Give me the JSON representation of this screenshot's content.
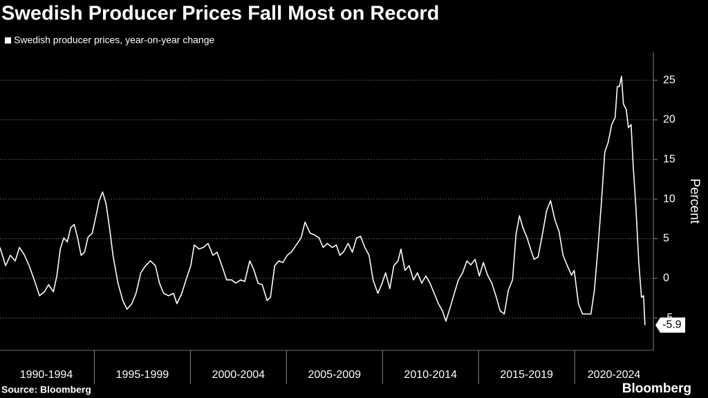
{
  "chart_data": {
    "type": "line",
    "title": "Swedish Producer Prices Fall Most on Record",
    "y_label": "Percent",
    "source": "Source: Bloomberg",
    "brand": "Bloomberg",
    "x": [
      1990.09,
      1990.38,
      1990.63,
      1990.88,
      1991.1,
      1991.35,
      1991.61,
      1991.9,
      1992.15,
      1992.4,
      1992.62,
      1992.87,
      1993.05,
      1993.23,
      1993.41,
      1993.59,
      1993.77,
      1993.95,
      1994.13,
      1994.31,
      1994.49,
      1994.67,
      1994.89,
      1995.07,
      1995.25,
      1995.43,
      1995.61,
      1995.79,
      1995.97,
      1996.23,
      1996.48,
      1996.7,
      1996.95,
      1997.17,
      1997.42,
      1997.67,
      1997.92,
      1998.18,
      1998.39,
      1998.61,
      1998.86,
      1999.12,
      1999.3,
      1999.55,
      1999.77,
      2000.02,
      2000.2,
      2000.45,
      2000.67,
      2000.92,
      2001.17,
      2001.39,
      2001.64,
      2001.89,
      2002.15,
      2002.36,
      2002.62,
      2002.83,
      2003.09,
      2003.3,
      2003.52,
      2003.74,
      2003.99,
      2004.17,
      2004.39,
      2004.6,
      2004.82,
      2005.04,
      2005.25,
      2005.51,
      2005.76,
      2005.97,
      2006.23,
      2006.44,
      2006.7,
      2006.91,
      2007.13,
      2007.38,
      2007.6,
      2007.78,
      2007.96,
      2008.21,
      2008.43,
      2008.65,
      2008.86,
      2009.08,
      2009.3,
      2009.51,
      2009.76,
      2009.98,
      2010.16,
      2010.38,
      2010.59,
      2010.81,
      2010.96,
      2011.17,
      2011.39,
      2011.61,
      2011.82,
      2012.04,
      2012.26,
      2012.47,
      2012.69,
      2012.91,
      2013.12,
      2013.3,
      2013.52,
      2013.74,
      2013.95,
      2014.17,
      2014.39,
      2014.6,
      2014.82,
      2015.04,
      2015.25,
      2015.47,
      2015.69,
      2015.9,
      2016.12,
      2016.34,
      2016.55,
      2016.77,
      2016.95,
      2017.13,
      2017.31,
      2017.53,
      2017.71,
      2017.89,
      2018.1,
      2018.32,
      2018.54,
      2018.75,
      2018.97,
      2019.19,
      2019.4,
      2019.62,
      2019.84,
      2019.98,
      2020.2,
      2020.41,
      2020.63,
      2020.85,
      2021.03,
      2021.21,
      2021.39,
      2021.57,
      2021.75,
      2021.93,
      2022.11,
      2022.22,
      2022.33,
      2022.44,
      2022.54,
      2022.69,
      2022.8,
      2022.94,
      2023.05,
      2023.19,
      2023.34,
      2023.48,
      2023.59,
      2023.66
    ],
    "series": [
      {
        "name": "Swedish producer prices, year-on-year change",
        "color": "#ffffff",
        "values": [
          3.9,
          1.6,
          2.9,
          2.2,
          3.9,
          3.0,
          1.6,
          -0.4,
          -2.2,
          -1.7,
          -0.8,
          -1.7,
          0.3,
          3.7,
          5.1,
          4.6,
          6.4,
          6.8,
          5.1,
          2.9,
          3.3,
          5.2,
          5.7,
          7.7,
          9.8,
          10.9,
          9.4,
          6.4,
          2.9,
          -0.6,
          -2.8,
          -3.9,
          -3.2,
          -1.9,
          0.7,
          1.6,
          2.2,
          1.6,
          -0.6,
          -1.9,
          -2.2,
          -1.9,
          -3.2,
          -1.9,
          -0.2,
          1.6,
          4.2,
          3.7,
          3.9,
          4.4,
          2.9,
          3.3,
          1.6,
          -0.2,
          -0.2,
          -0.6,
          -0.2,
          -0.4,
          2.2,
          1.1,
          -0.6,
          -0.8,
          -2.8,
          -2.4,
          1.6,
          2.2,
          2.0,
          2.9,
          3.3,
          4.2,
          5.1,
          7.1,
          5.7,
          5.5,
          5.1,
          3.9,
          4.4,
          3.9,
          4.2,
          2.9,
          3.3,
          4.4,
          3.3,
          5.1,
          5.3,
          3.9,
          2.9,
          -0.2,
          -1.9,
          -0.6,
          0.7,
          -1.3,
          1.6,
          2.2,
          3.7,
          1.0,
          1.6,
          -0.2,
          0.7,
          -0.6,
          0.3,
          -0.6,
          -1.9,
          -3.2,
          -4.1,
          -5.4,
          -3.7,
          -1.9,
          -0.2,
          0.7,
          2.2,
          1.7,
          2.4,
          0.3,
          2.0,
          0.4,
          -0.6,
          -2.2,
          -4.1,
          -4.5,
          -1.5,
          -0.2,
          5.5,
          7.9,
          6.4,
          5.1,
          3.7,
          2.4,
          2.7,
          5.5,
          8.5,
          9.8,
          7.4,
          5.9,
          2.9,
          1.6,
          0.4,
          1.0,
          -3.2,
          -4.5,
          -4.5,
          -4.5,
          -1.5,
          3.7,
          9.4,
          15.9,
          17.2,
          19.4,
          20.3,
          24.2,
          24.2,
          25.5,
          22.0,
          21.3,
          19.0,
          19.4,
          14.2,
          9.0,
          2.0,
          -2.4,
          -2.2,
          -5.9
        ]
      }
    ],
    "xlim": [
      1990,
      2024.1
    ],
    "xticks": [
      {
        "value": 1990,
        "label": "1990-1994"
      },
      {
        "value": 1995,
        "label": "1995-1999"
      },
      {
        "value": 2000,
        "label": "2000-2004"
      },
      {
        "value": 2005,
        "label": "2005-2009"
      },
      {
        "value": 2010,
        "label": "2010-2014"
      },
      {
        "value": 2015,
        "label": "2015-2019"
      },
      {
        "value": 2020,
        "label": "2020-2024"
      }
    ],
    "ylim": [
      -9,
      28.5
    ],
    "yticks": [
      -5,
      0,
      5,
      10,
      15,
      20,
      25
    ],
    "grid": true
  }
}
